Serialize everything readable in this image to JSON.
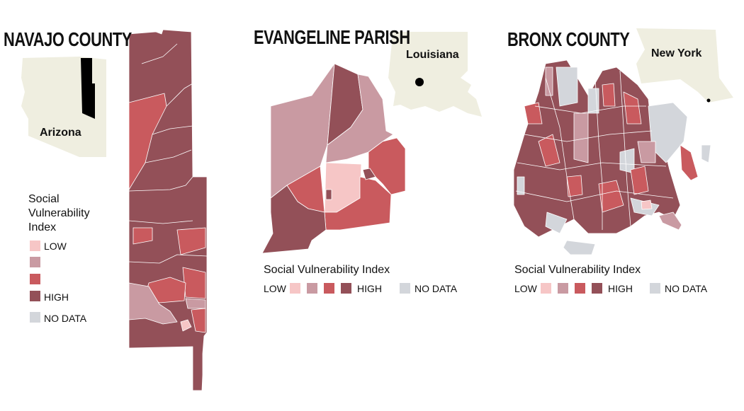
{
  "panels": [
    {
      "title": "NAVAJO COUNTY",
      "state": "Arizona",
      "legend": {
        "title": "Social Vulnerability Index",
        "low_label": "LOW",
        "high_label": "HIGH",
        "no_data_label": "NO DATA"
      }
    },
    {
      "title": "EVANGELINE PARISH",
      "state": "Louisiana",
      "legend": {
        "title": "Social Vulnerability Index",
        "low_label": "LOW",
        "high_label": "HIGH",
        "no_data_label": "NO DATA"
      }
    },
    {
      "title": "BRONX COUNTY",
      "state": "New York",
      "legend": {
        "title": "Social Vulnerability Index",
        "low_label": "LOW",
        "high_label": "HIGH",
        "no_data_label": "NO DATA"
      }
    }
  ]
}
